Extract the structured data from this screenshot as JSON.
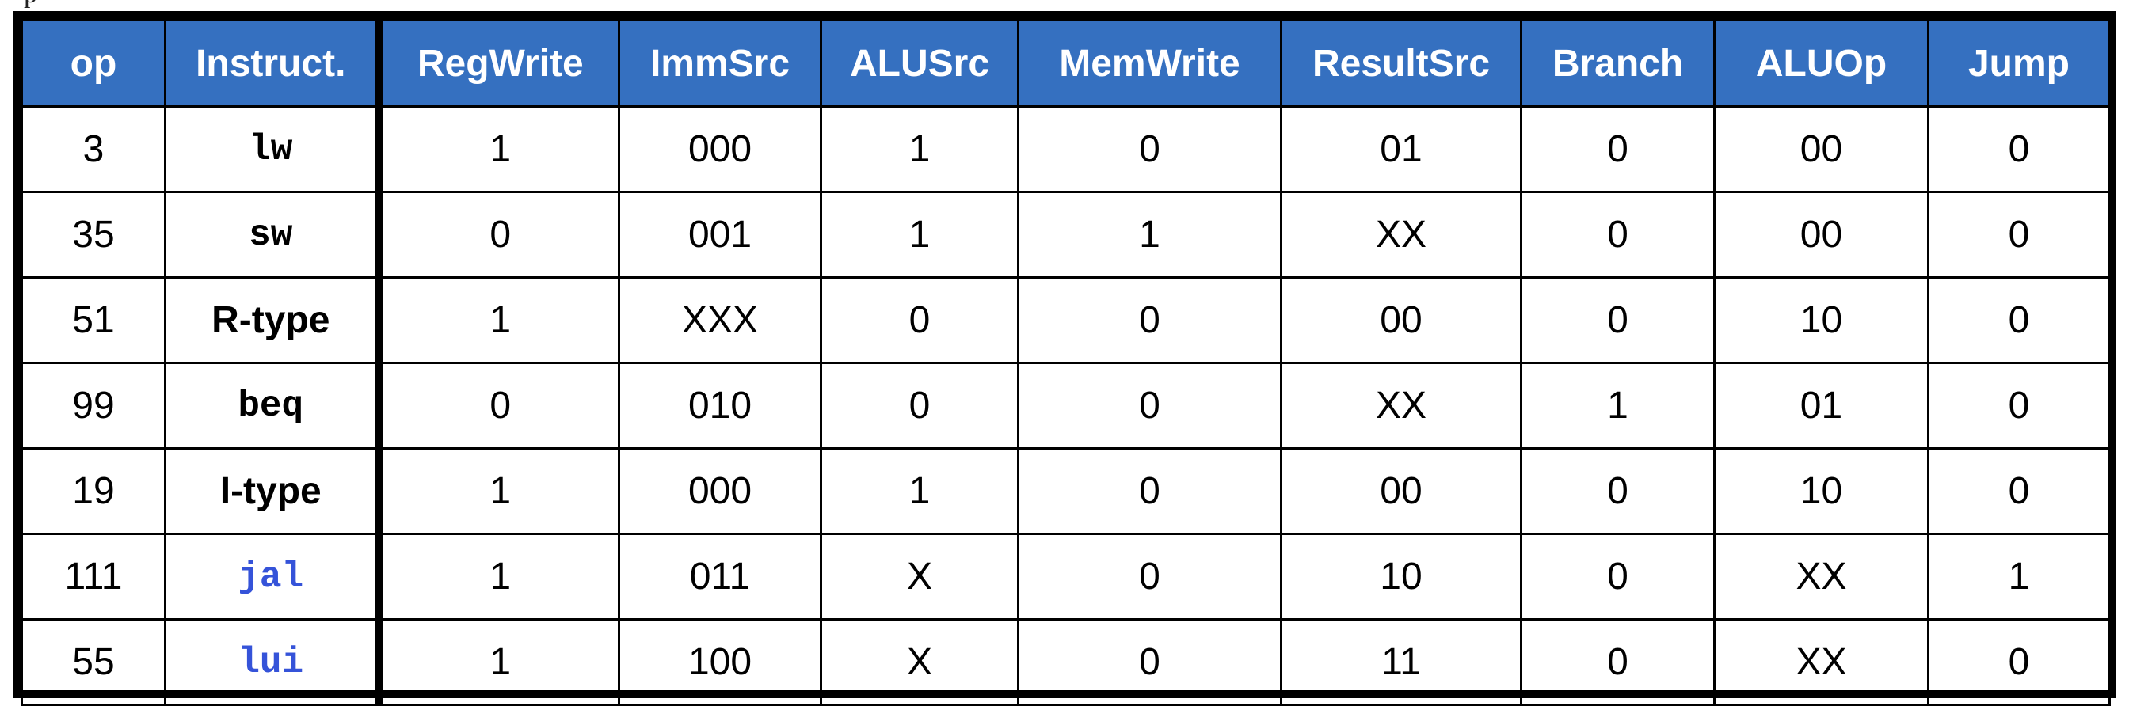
{
  "colors": {
    "header_background": "#3570c0",
    "header_text": "#ffffff",
    "highlight_instruction": "#3553d9",
    "border": "#000000"
  },
  "table": {
    "headers": [
      "op",
      "Instruct.",
      "RegWrite",
      "ImmSrc",
      "ALUSrc",
      "MemWrite",
      "ResultSrc",
      "Branch",
      "ALUOp",
      "Jump"
    ],
    "rows": [
      {
        "op": "3",
        "instr": "lw",
        "instr_style": "mono",
        "instr_color": "black",
        "cells": [
          "1",
          "000",
          "1",
          "0",
          "01",
          "0",
          "00",
          "0"
        ]
      },
      {
        "op": "35",
        "instr": "sw",
        "instr_style": "mono",
        "instr_color": "black",
        "cells": [
          "0",
          "001",
          "1",
          "1",
          "XX",
          "0",
          "00",
          "0"
        ]
      },
      {
        "op": "51",
        "instr": "R-type",
        "instr_style": "sans",
        "instr_color": "black",
        "cells": [
          "1",
          "XXX",
          "0",
          "0",
          "00",
          "0",
          "10",
          "0"
        ]
      },
      {
        "op": "99",
        "instr": "beq",
        "instr_style": "mono",
        "instr_color": "black",
        "cells": [
          "0",
          "010",
          "0",
          "0",
          "XX",
          "1",
          "01",
          "0"
        ]
      },
      {
        "op": "19",
        "instr": "I-type",
        "instr_style": "sans",
        "instr_color": "black",
        "cells": [
          "1",
          "000",
          "1",
          "0",
          "00",
          "0",
          "10",
          "0"
        ]
      },
      {
        "op": "111",
        "instr": "jal",
        "instr_style": "mono",
        "instr_color": "blue",
        "cells": [
          "1",
          "011",
          "X",
          "0",
          "10",
          "0",
          "XX",
          "1"
        ]
      },
      {
        "op": "55",
        "instr": "lui",
        "instr_style": "mono",
        "instr_color": "blue",
        "cells": [
          "1",
          "100",
          "X",
          "0",
          "11",
          "0",
          "XX",
          "0"
        ]
      }
    ]
  }
}
